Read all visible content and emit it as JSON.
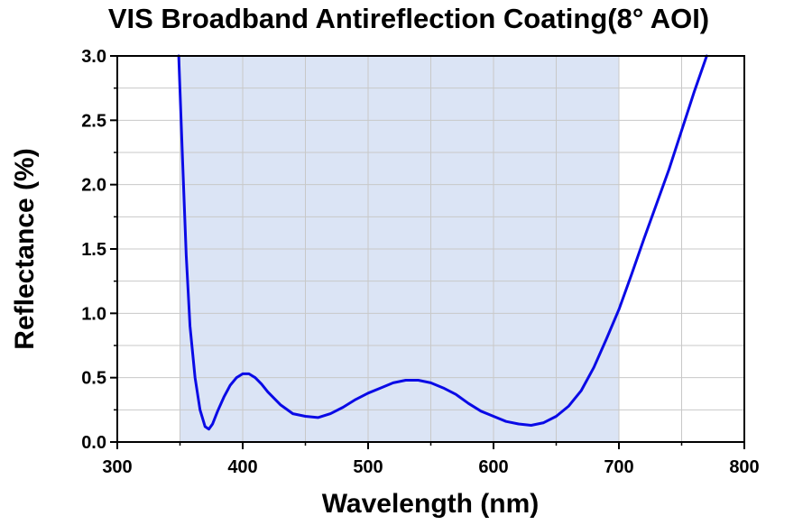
{
  "chart_data": {
    "type": "line",
    "title": "VIS Broadband Antireflection Coating(8° AOI)",
    "xlabel": "Wavelength (nm)",
    "ylabel": "Reflectance (%)",
    "xlim": [
      300,
      800
    ],
    "ylim": [
      0,
      3.0
    ],
    "xticks": [
      300,
      400,
      500,
      600,
      700,
      800
    ],
    "xtick_labels": [
      "300",
      "400",
      "500",
      "600",
      "700",
      "800"
    ],
    "yticks": [
      0,
      0.5,
      1.0,
      1.5,
      2.0,
      2.5,
      3.0
    ],
    "ytick_labels": [
      "0.0",
      "0.5",
      "1.0",
      "1.5",
      "2.0",
      "2.5",
      "3.0"
    ],
    "grid": true,
    "legend": "none",
    "shaded_band": {
      "x_start": 350,
      "x_end": 700,
      "color": "#dbe4f5"
    },
    "series": [
      {
        "color": "#0a0ae6",
        "x": [
          349,
          352,
          355,
          358,
          362,
          366,
          370,
          373,
          376,
          380,
          385,
          390,
          395,
          400,
          405,
          410,
          415,
          420,
          430,
          440,
          450,
          460,
          470,
          480,
          490,
          500,
          510,
          520,
          530,
          540,
          550,
          560,
          570,
          580,
          590,
          600,
          610,
          620,
          630,
          640,
          650,
          660,
          670,
          680,
          690,
          700,
          710,
          720,
          730,
          740,
          750,
          760,
          770
        ],
        "y": [
          3.0,
          2.2,
          1.45,
          0.9,
          0.5,
          0.25,
          0.12,
          0.1,
          0.14,
          0.24,
          0.35,
          0.44,
          0.5,
          0.53,
          0.53,
          0.5,
          0.45,
          0.39,
          0.29,
          0.22,
          0.2,
          0.19,
          0.22,
          0.27,
          0.33,
          0.38,
          0.42,
          0.46,
          0.48,
          0.48,
          0.46,
          0.42,
          0.37,
          0.3,
          0.24,
          0.2,
          0.16,
          0.14,
          0.13,
          0.15,
          0.2,
          0.28,
          0.4,
          0.58,
          0.8,
          1.03,
          1.3,
          1.58,
          1.85,
          2.12,
          2.42,
          2.72,
          3.0
        ]
      }
    ]
  }
}
